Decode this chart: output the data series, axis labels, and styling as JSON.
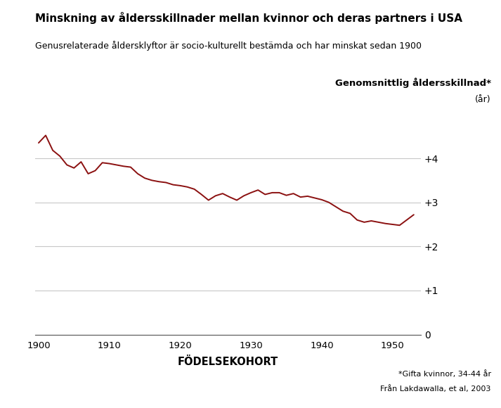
{
  "title": "Minskning av åldersskillnader mellan kvinnor och deras partners i USA",
  "subtitle": "Genusrelaterade åldersklyftor är socio-kulturellt bestämda och har minskat sedan 1900",
  "ylabel_main": "Genomsnittlig åldersskillnad*",
  "ylabel_unit": "(år)",
  "xlabel": "FÖDELSEKOHORT",
  "footnote1": "*Gifta kvinnor, 34-44 år",
  "footnote2": "Från Lakdawalla, et al, 2003",
  "line_color": "#8B1010",
  "background_color": "#ffffff",
  "grid_color": "#c8c8c8",
  "xlim": [
    1899.5,
    1954
  ],
  "ylim": [
    0,
    5.0
  ],
  "yticks": [
    0,
    1,
    2,
    3,
    4
  ],
  "ytick_labels": [
    "0",
    "+1",
    "+2",
    "+3",
    "+4"
  ],
  "xticks": [
    1900,
    1910,
    1920,
    1930,
    1940,
    1950
  ],
  "data_x": [
    1900,
    1901,
    1902,
    1903,
    1904,
    1905,
    1906,
    1907,
    1908,
    1909,
    1910,
    1911,
    1912,
    1913,
    1914,
    1915,
    1916,
    1917,
    1918,
    1919,
    1920,
    1921,
    1922,
    1923,
    1924,
    1925,
    1926,
    1927,
    1928,
    1929,
    1930,
    1931,
    1932,
    1933,
    1934,
    1935,
    1936,
    1937,
    1938,
    1939,
    1940,
    1941,
    1942,
    1943,
    1944,
    1945,
    1946,
    1947,
    1948,
    1949,
    1950,
    1951,
    1952,
    1953
  ],
  "data_y": [
    4.35,
    4.52,
    4.18,
    4.05,
    3.85,
    3.78,
    3.92,
    3.65,
    3.72,
    3.9,
    3.88,
    3.85,
    3.82,
    3.8,
    3.65,
    3.55,
    3.5,
    3.47,
    3.45,
    3.4,
    3.38,
    3.35,
    3.3,
    3.18,
    3.05,
    3.15,
    3.2,
    3.12,
    3.05,
    3.15,
    3.22,
    3.28,
    3.18,
    3.22,
    3.22,
    3.16,
    3.2,
    3.12,
    3.14,
    3.1,
    3.06,
    3.0,
    2.9,
    2.8,
    2.75,
    2.6,
    2.55,
    2.58,
    2.55,
    2.52,
    2.5,
    2.48,
    2.6,
    2.72
  ]
}
